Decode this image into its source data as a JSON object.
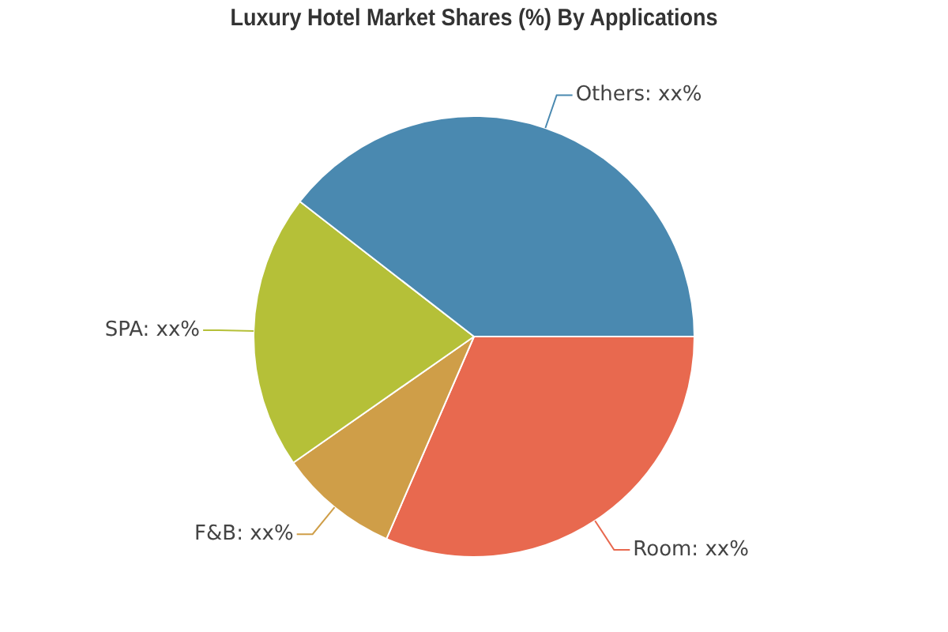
{
  "chart_data": {
    "type": "pie",
    "title": "Luxury Hotel Market Shares (%) By Applications",
    "categories": [
      "Room: xx%",
      "F&B: xx%",
      "SPA: xx%",
      "Others: xx%"
    ],
    "values": [
      31.5,
      8.8,
      20.2,
      39.5
    ],
    "colors": [
      "#e8694f",
      "#cf9e48",
      "#b5c038",
      "#4a89b0"
    ],
    "legend": false
  }
}
